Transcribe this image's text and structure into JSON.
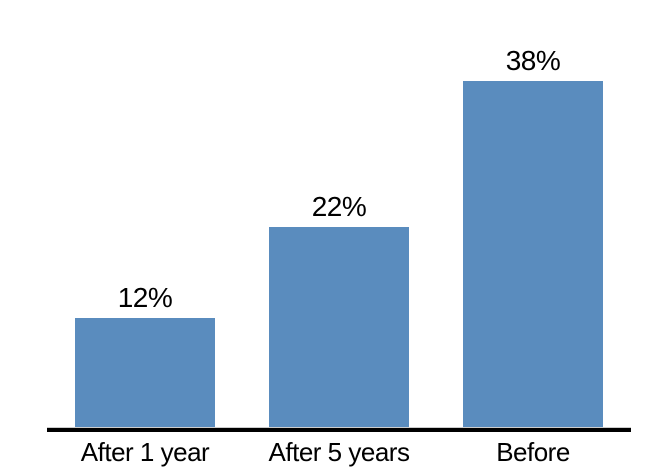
{
  "chart_data": {
    "type": "bar",
    "title": "",
    "categories": [
      "After 1 year",
      "After 5 years",
      "Before"
    ],
    "values": [
      12,
      22,
      38
    ],
    "value_labels": [
      "12%",
      "22%",
      "38%"
    ],
    "unit": "%",
    "xlabel": "",
    "ylabel": "",
    "ylim": [
      0,
      38
    ],
    "grid": false,
    "legend": false,
    "bar_color": "#5A8CBE",
    "axis_color": "#000000",
    "text_color": "#000000",
    "background_color": "#FFFFFF"
  }
}
